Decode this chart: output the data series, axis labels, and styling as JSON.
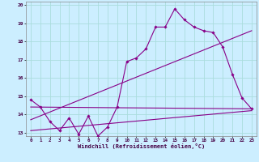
{
  "xlabel": "Windchill (Refroidissement éolien,°C)",
  "bg_color": "#cceeff",
  "grid_color": "#aadddd",
  "line_color": "#880088",
  "xlim": [
    -0.5,
    23.5
  ],
  "ylim": [
    12.8,
    20.2
  ],
  "yticks": [
    13,
    14,
    15,
    16,
    17,
    18,
    19,
    20
  ],
  "xticks": [
    0,
    1,
    2,
    3,
    4,
    5,
    6,
    7,
    8,
    9,
    10,
    11,
    12,
    13,
    14,
    15,
    16,
    17,
    18,
    19,
    20,
    21,
    22,
    23
  ],
  "series1_x": [
    0,
    1,
    2,
    3,
    4,
    5,
    6,
    7,
    8,
    9,
    10,
    11,
    12,
    13,
    14,
    15,
    16,
    17,
    18,
    19,
    20,
    21,
    22,
    23
  ],
  "series1_y": [
    14.8,
    14.4,
    13.6,
    13.1,
    13.8,
    12.9,
    13.9,
    12.8,
    13.3,
    14.4,
    16.9,
    17.1,
    17.6,
    18.8,
    18.8,
    19.8,
    19.2,
    18.8,
    18.6,
    18.5,
    17.7,
    16.2,
    14.9,
    14.3
  ],
  "trend1_x": [
    0,
    23
  ],
  "trend1_y": [
    14.4,
    14.3
  ],
  "trend2_x": [
    0,
    23
  ],
  "trend2_y": [
    13.7,
    18.6
  ],
  "trend3_x": [
    0,
    23
  ],
  "trend3_y": [
    13.1,
    14.2
  ]
}
